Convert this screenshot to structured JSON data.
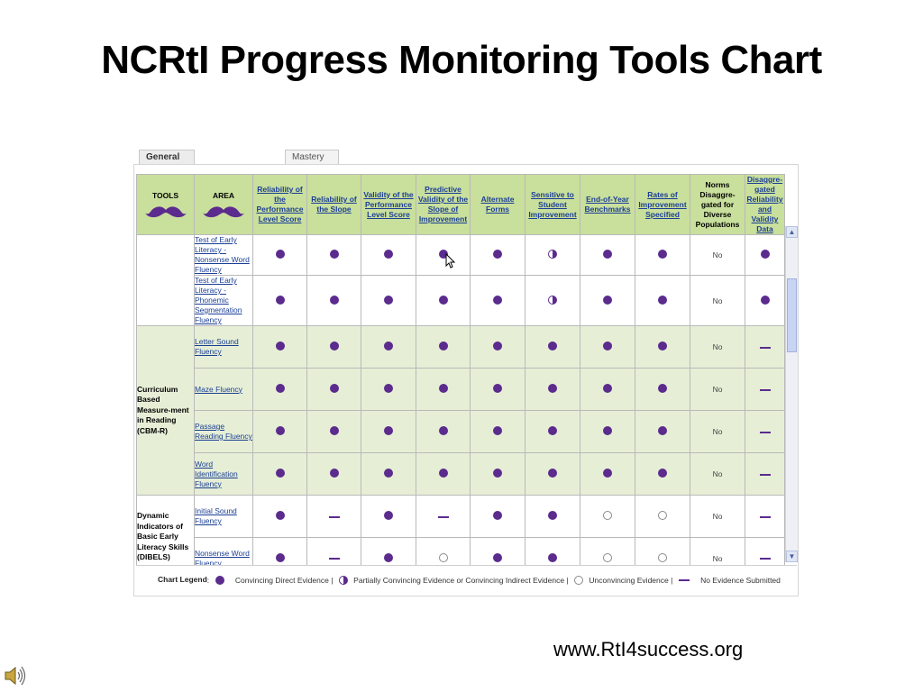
{
  "slide": {
    "title": "NCRtI Progress Monitoring Tools Chart",
    "footer_url": "www.RtI4success.org"
  },
  "tabs": [
    {
      "label": "General Outcome Measures",
      "active": true
    },
    {
      "label": "Mastery Measures",
      "active": false
    }
  ],
  "columns": {
    "tools": "TOOLS",
    "area": "AREA",
    "reliability_performance": "Reliability of the Performance Level Score",
    "reliability_slope": "Reliability of the Slope",
    "validity_performance": "Validity of the Performance Level Score",
    "predictive_validity": "Predictive Validity of the Slope of Improvement",
    "alternate_forms": "Alternate Forms",
    "sensitive": "Sensitive to Student Improvement",
    "benchmarks": "End-of-Year Benchmarks",
    "rates": "Rates of Improvement Specified",
    "norms": "Norms Disaggre-gated for Diverse Populations",
    "disaggregated": "Disaggre-gated Reliability and Validity Data"
  },
  "groups": {
    "cbm": "Curriculum Based Measure-ment in Reading (CBM-R)",
    "dibels": "Dynamic Indicators of Basic Early Literacy Skills (DIBELS)"
  },
  "rows": [
    {
      "area": "Test of Early Literacy - Nonsense Word Fluency",
      "ratings": [
        "full",
        "full",
        "full",
        "full",
        "full",
        "half",
        "full",
        "full"
      ],
      "norms": "No",
      "disagg": "full"
    },
    {
      "area": "Test of Early Literacy - Phonemic Segmentation Fluency",
      "ratings": [
        "full",
        "full",
        "full",
        "full",
        "full",
        "half",
        "full",
        "full"
      ],
      "norms": "No",
      "disagg": "full"
    },
    {
      "area": "Letter Sound Fluency",
      "ratings": [
        "full",
        "full",
        "full",
        "full",
        "full",
        "full",
        "full",
        "full"
      ],
      "norms": "No",
      "disagg": "dash"
    },
    {
      "area": "Maze Fluency",
      "ratings": [
        "full",
        "full",
        "full",
        "full",
        "full",
        "full",
        "full",
        "full"
      ],
      "norms": "No",
      "disagg": "dash"
    },
    {
      "area": "Passage Reading Fluency",
      "ratings": [
        "full",
        "full",
        "full",
        "full",
        "full",
        "full",
        "full",
        "full"
      ],
      "norms": "No",
      "disagg": "dash"
    },
    {
      "area": "Word Identification Fluency",
      "ratings": [
        "full",
        "full",
        "full",
        "full",
        "full",
        "full",
        "full",
        "full"
      ],
      "norms": "No",
      "disagg": "dash"
    },
    {
      "area": "Initial Sound Fluency",
      "ratings": [
        "full",
        "dash",
        "full",
        "dash",
        "full",
        "full",
        "empty",
        "empty"
      ],
      "norms": "No",
      "disagg": "dash"
    },
    {
      "area": "Nonsense Word Fluency",
      "ratings": [
        "full",
        "dash",
        "full",
        "empty",
        "full",
        "full",
        "empty",
        "empty"
      ],
      "norms": "No",
      "disagg": "dash"
    }
  ],
  "legend": {
    "title": "Chart Legend",
    "full": "Convincing Direct Evidence |",
    "half": "Partially Convincing Evidence or Convincing Indirect Evidence |",
    "empty": "Unconvincing Evidence |",
    "dash": "No Evidence Submitted"
  },
  "colors": {
    "accent_purple": "#5b2b8e",
    "header_green": "#c9df9c",
    "row_green": "#e6efd6",
    "link_blue": "#1b3f95"
  },
  "icons": {
    "speaker": "speaker-icon",
    "cursor": "mouse-pointer-icon",
    "mustache": "mustache-icon"
  }
}
